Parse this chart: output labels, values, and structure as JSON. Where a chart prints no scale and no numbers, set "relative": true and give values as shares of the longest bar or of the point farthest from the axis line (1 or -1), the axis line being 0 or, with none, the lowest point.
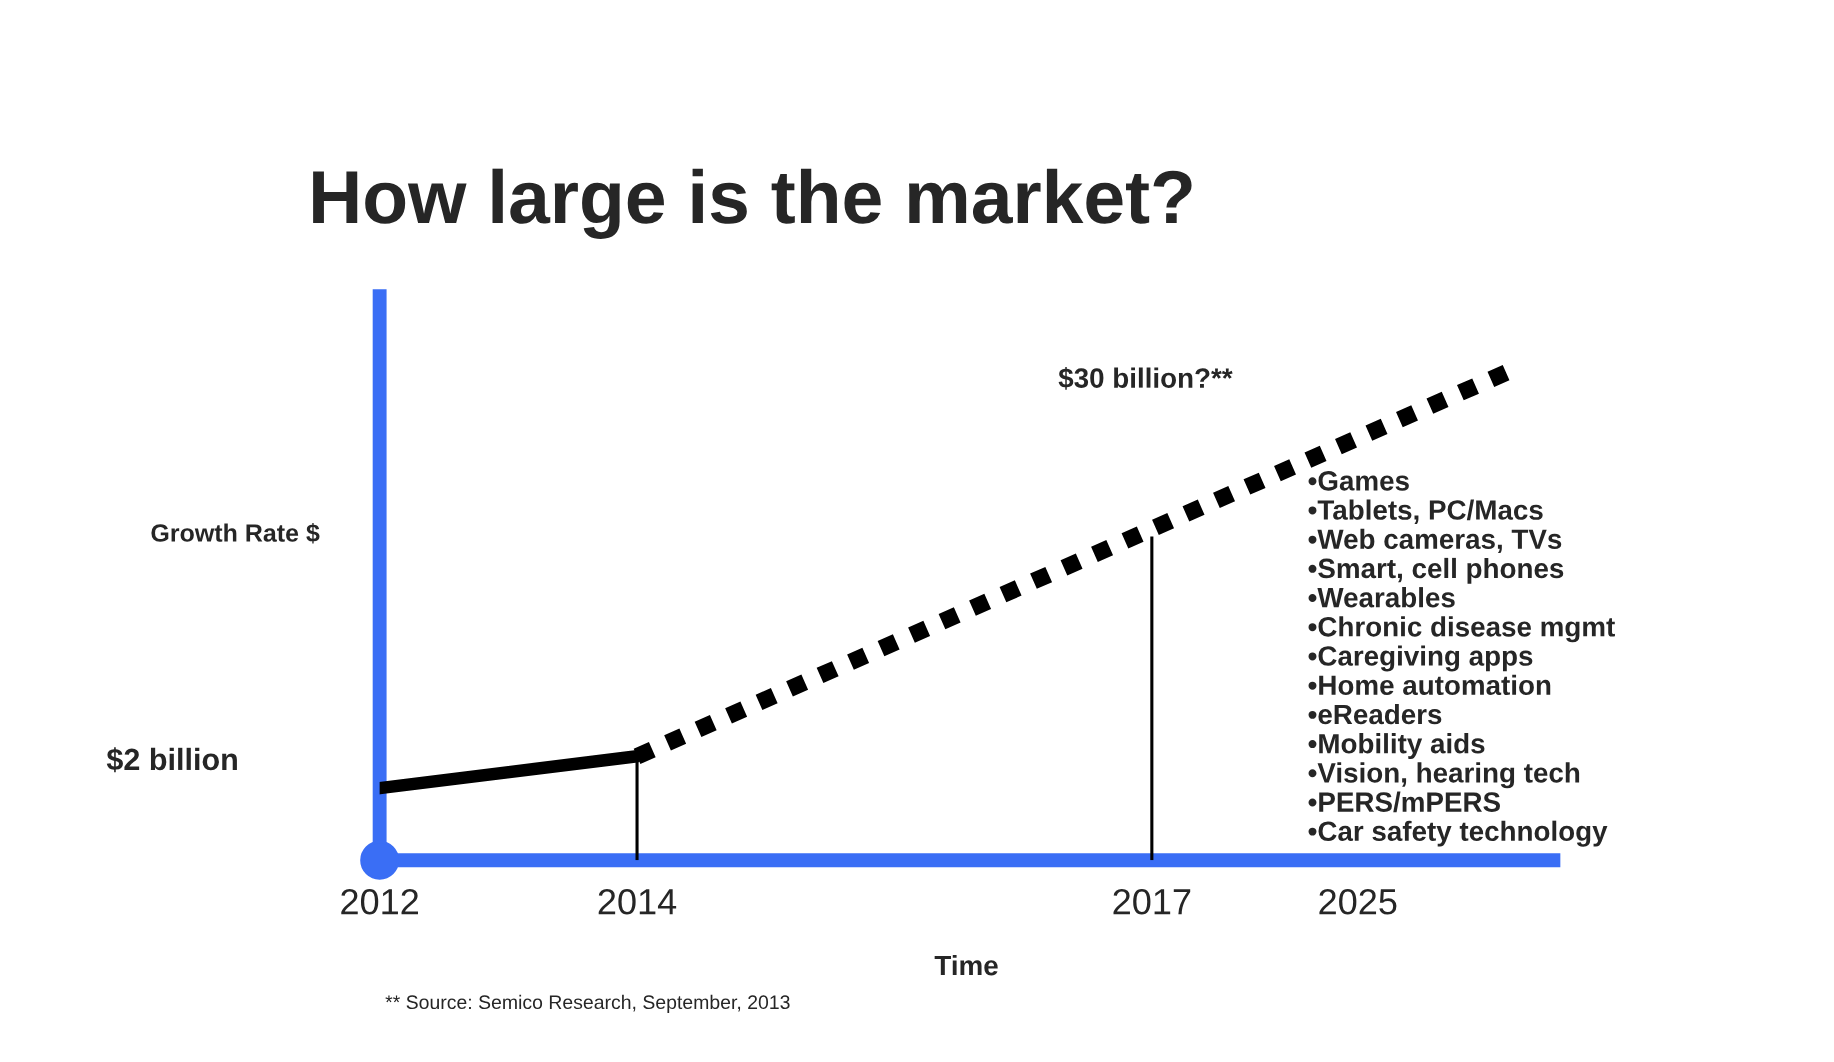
{
  "chart_data": {
    "type": "line",
    "title": "How large is the market?",
    "xlabel": "Time",
    "ylabel": "Growth Rate $",
    "relative": true,
    "categories": [
      "2012",
      null,
      null,
      null,
      null,
      "2014",
      null,
      null,
      null,
      null,
      null,
      null,
      null,
      null,
      null,
      "2017",
      null,
      null,
      null,
      "2025",
      null,
      null,
      null
    ],
    "series": [
      {
        "color": "#000000",
        "line_style": "solid",
        "values": [
          0.147,
          null,
          null,
          null,
          null,
          0.212,
          null,
          null,
          null,
          null,
          null,
          null,
          null,
          null,
          null,
          null,
          null,
          null,
          null,
          null,
          null,
          null,
          null
        ]
      },
      {
        "color": "#000000",
        "line_style": "dotted",
        "values": [
          null,
          null,
          null,
          null,
          null,
          0.212,
          null,
          null,
          null,
          null,
          null,
          null,
          null,
          null,
          null,
          null,
          null,
          null,
          null,
          null,
          null,
          null,
          1
        ]
      },
      {
        "type": "bar",
        "color": "#000000",
        "values": [
          null,
          null,
          null,
          null,
          null,
          0.212,
          null,
          null,
          null,
          null,
          null,
          null,
          null,
          null,
          null,
          0.66,
          null,
          null,
          null,
          null,
          null,
          null,
          null
        ]
      }
    ],
    "annotations": [
      "$2 billion",
      "$30 billion?**",
      "•Games",
      "•Tablets, PC/Macs",
      "•Web cameras, TVs",
      "•Smart, cell phones",
      "•Wearables",
      "•Chronic disease mgmt",
      "•Caregiving apps",
      "•Home automation",
      "•eReaders",
      "•Mobility aids",
      "•Vision, hearing tech",
      "•PERS/mPERS",
      "•Car safety technology",
      "** Source: Semico Research, September, 2013"
    ],
    "grid": false,
    "legend": false
  }
}
